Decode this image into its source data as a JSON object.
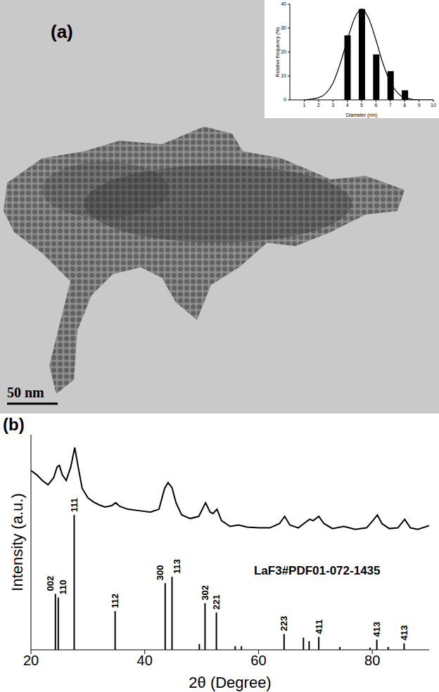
{
  "panels": [
    {
      "label": "(a)",
      "scale_bar": "50 nm"
    },
    {
      "label": "(b)"
    }
  ],
  "chart_data": [
    {
      "type": "bar",
      "x_label": "Diameter (nm)",
      "y_label": "Relative frequency (%)",
      "x": [
        4,
        5,
        6,
        7,
        8
      ],
      "values": [
        27,
        38,
        19,
        12,
        4
      ],
      "color": "#000000",
      "xlim": [
        0,
        10
      ],
      "xticks": [
        1,
        2,
        3,
        4,
        5,
        6,
        7,
        8,
        9,
        10
      ],
      "ylim": [
        0,
        40
      ],
      "yticks": [
        0,
        10,
        20,
        30,
        40
      ],
      "fit": {
        "type": "line",
        "color": "#000000",
        "x": [
          1,
          2,
          3,
          3.5,
          4,
          4.5,
          5,
          5.5,
          6,
          6.5,
          7,
          7.5,
          8,
          9,
          10
        ],
        "values": [
          0,
          0.9,
          7,
          15,
          25,
          34,
          38,
          34,
          25,
          15,
          7.5,
          3,
          0.9,
          0,
          0
        ]
      }
    },
    {
      "type": "line",
      "x_label": "2θ (Degree)",
      "y_label": "Intensity (a.u.)",
      "color": "#000000",
      "x": [
        20,
        21,
        22,
        23,
        24,
        24.6,
        25,
        25.5,
        26.2,
        27,
        27.7,
        28.3,
        29,
        30,
        31,
        32,
        33,
        34.2,
        34.9,
        35.6,
        37,
        39,
        41,
        42.5,
        43.5,
        44.1,
        44.8,
        45.5,
        46.5,
        48,
        49.5,
        50.7,
        51.5,
        52,
        52.7,
        53.5,
        55,
        56.5,
        58,
        60,
        62,
        63.7,
        64.6,
        65.5,
        67,
        68.3,
        69,
        69.6,
        70.6,
        71.5,
        73,
        75,
        77,
        79,
        80.1,
        80.9,
        81.7,
        83,
        84.5,
        85.7,
        86.7,
        88,
        90
      ],
      "values": [
        2.5,
        2.44,
        2.36,
        2.3,
        2.4,
        2.55,
        2.57,
        2.44,
        2.36,
        2.55,
        2.82,
        2.55,
        2.25,
        2.12,
        2.06,
        2.02,
        1.99,
        2.01,
        2.05,
        2,
        1.96,
        1.94,
        1.92,
        1.96,
        2.25,
        2.33,
        2.26,
        2.05,
        1.88,
        1.83,
        1.86,
        2.05,
        1.92,
        1.9,
        1.96,
        1.8,
        1.72,
        1.74,
        1.71,
        1.7,
        1.7,
        1.76,
        1.86,
        1.74,
        1.7,
        1.78,
        1.82,
        1.8,
        1.86,
        1.76,
        1.69,
        1.72,
        1.68,
        1.7,
        1.8,
        1.88,
        1.76,
        1.69,
        1.7,
        1.82,
        1.7,
        1.68,
        1.73
      ],
      "xlim": [
        20,
        90
      ],
      "xticks": [
        20,
        40,
        60,
        80
      ],
      "ylim": [
        0,
        3
      ],
      "yticks": [
        0,
        1,
        2,
        3
      ],
      "tick_labels": "x",
      "reference": {
        "type": "stick",
        "annotation": "LaF3#PDF01-072-1435",
        "color": "#000000",
        "x": [
          24.3,
          24.8,
          27.6,
          34.8,
          43.6,
          44.8,
          49.6,
          50.6,
          52.6,
          55.9,
          57.0,
          64.5,
          67.9,
          68.9,
          70.6,
          74.3,
          79.6,
          80.8,
          82.8,
          85.6
        ],
        "values": [
          0.78,
          0.73,
          1.88,
          0.54,
          0.93,
          1.02,
          0.08,
          0.65,
          0.52,
          0.05,
          0.05,
          0.22,
          0.17,
          0.12,
          0.18,
          0.04,
          0.03,
          0.14,
          0.04,
          0.09
        ],
        "labels": [
          "002",
          "110",
          "111",
          "112",
          "300",
          "113",
          null,
          "302",
          "221",
          null,
          null,
          "223",
          null,
          null,
          "411",
          null,
          null,
          "413",
          null,
          "413"
        ]
      }
    }
  ]
}
